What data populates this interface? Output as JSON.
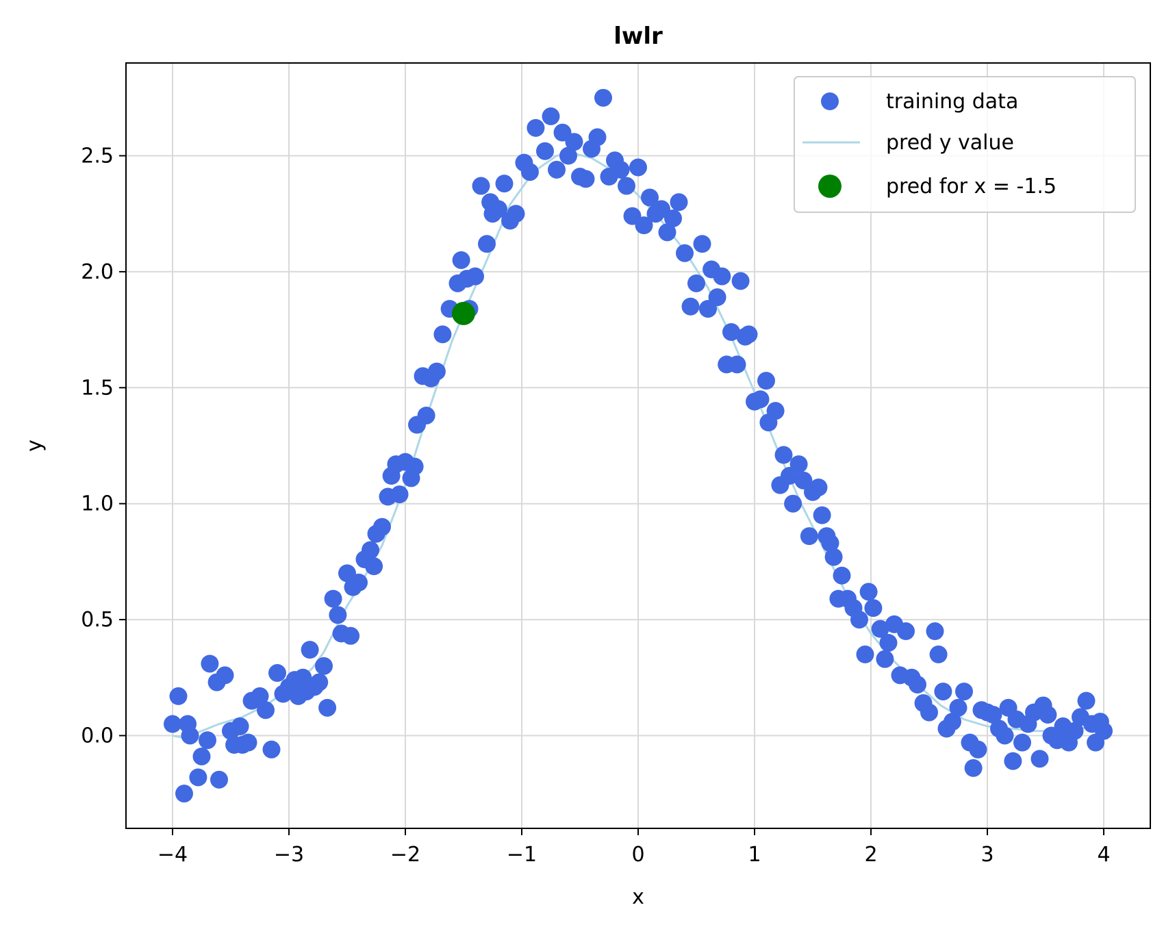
{
  "chart_data": {
    "type": "scatter",
    "title": "lwlr",
    "xlabel": "x",
    "ylabel": "y",
    "xlim": [
      -4.4,
      4.4
    ],
    "ylim": [
      -0.4,
      2.9
    ],
    "grid": true,
    "legend_placement": "upper-right",
    "x_ticks": [
      -4,
      -3,
      -2,
      -1,
      0,
      1,
      2,
      3,
      4
    ],
    "x_tick_labels": [
      "−4",
      "−3",
      "−2",
      "−1",
      "0",
      "1",
      "2",
      "3",
      "4"
    ],
    "y_ticks": [
      0.0,
      0.5,
      1.0,
      1.5,
      2.0,
      2.5
    ],
    "y_tick_labels": [
      "0.0",
      "0.5",
      "1.0",
      "1.5",
      "2.0",
      "2.5"
    ],
    "colors": {
      "training": "#4169e1",
      "pred_line": "#add8e6",
      "pred_point": "#008000",
      "grid": "#d9d9d9"
    },
    "series": [
      {
        "name": "training data",
        "kind": "scatter",
        "points": [
          [
            -4.0,
            0.05
          ],
          [
            -3.95,
            0.17
          ],
          [
            -3.9,
            -0.25
          ],
          [
            -3.87,
            0.05
          ],
          [
            -3.85,
            0.0
          ],
          [
            -3.78,
            -0.18
          ],
          [
            -3.75,
            -0.09
          ],
          [
            -3.7,
            -0.02
          ],
          [
            -3.68,
            0.31
          ],
          [
            -3.62,
            0.23
          ],
          [
            -3.6,
            -0.19
          ],
          [
            -3.55,
            0.26
          ],
          [
            -3.5,
            0.02
          ],
          [
            -3.47,
            -0.04
          ],
          [
            -3.42,
            0.04
          ],
          [
            -3.4,
            -0.04
          ],
          [
            -3.35,
            -0.03
          ],
          [
            -3.32,
            0.15
          ],
          [
            -3.25,
            0.17
          ],
          [
            -3.2,
            0.11
          ],
          [
            -3.15,
            -0.06
          ],
          [
            -3.1,
            0.27
          ],
          [
            -3.05,
            0.18
          ],
          [
            -3.0,
            0.21
          ],
          [
            -2.95,
            0.24
          ],
          [
            -2.92,
            0.17
          ],
          [
            -2.88,
            0.25
          ],
          [
            -2.85,
            0.19
          ],
          [
            -2.82,
            0.37
          ],
          [
            -2.78,
            0.21
          ],
          [
            -2.74,
            0.23
          ],
          [
            -2.7,
            0.3
          ],
          [
            -2.67,
            0.12
          ],
          [
            -2.62,
            0.59
          ],
          [
            -2.58,
            0.52
          ],
          [
            -2.55,
            0.44
          ],
          [
            -2.5,
            0.7
          ],
          [
            -2.47,
            0.43
          ],
          [
            -2.45,
            0.64
          ],
          [
            -2.4,
            0.66
          ],
          [
            -2.35,
            0.76
          ],
          [
            -2.3,
            0.8
          ],
          [
            -2.27,
            0.73
          ],
          [
            -2.25,
            0.87
          ],
          [
            -2.2,
            0.9
          ],
          [
            -2.15,
            1.03
          ],
          [
            -2.12,
            1.12
          ],
          [
            -2.08,
            1.17
          ],
          [
            -2.05,
            1.04
          ],
          [
            -2.0,
            1.18
          ],
          [
            -1.95,
            1.11
          ],
          [
            -1.92,
            1.16
          ],
          [
            -1.9,
            1.34
          ],
          [
            -1.85,
            1.55
          ],
          [
            -1.82,
            1.38
          ],
          [
            -1.78,
            1.54
          ],
          [
            -1.73,
            1.57
          ],
          [
            -1.68,
            1.73
          ],
          [
            -1.62,
            1.84
          ],
          [
            -1.55,
            1.95
          ],
          [
            -1.52,
            2.05
          ],
          [
            -1.47,
            1.97
          ],
          [
            -1.45,
            1.84
          ],
          [
            -1.4,
            1.98
          ],
          [
            -1.35,
            2.37
          ],
          [
            -1.3,
            2.12
          ],
          [
            -1.27,
            2.3
          ],
          [
            -1.25,
            2.25
          ],
          [
            -1.2,
            2.27
          ],
          [
            -1.15,
            2.38
          ],
          [
            -1.1,
            2.22
          ],
          [
            -1.05,
            2.25
          ],
          [
            -0.98,
            2.47
          ],
          [
            -0.93,
            2.43
          ],
          [
            -0.88,
            2.62
          ],
          [
            -0.8,
            2.52
          ],
          [
            -0.75,
            2.67
          ],
          [
            -0.7,
            2.44
          ],
          [
            -0.65,
            2.6
          ],
          [
            -0.6,
            2.5
          ],
          [
            -0.55,
            2.56
          ],
          [
            -0.5,
            2.41
          ],
          [
            -0.45,
            2.4
          ],
          [
            -0.4,
            2.53
          ],
          [
            -0.35,
            2.58
          ],
          [
            -0.3,
            2.75
          ],
          [
            -0.25,
            2.41
          ],
          [
            -0.2,
            2.48
          ],
          [
            -0.15,
            2.44
          ],
          [
            -0.1,
            2.37
          ],
          [
            -0.05,
            2.24
          ],
          [
            0.0,
            2.45
          ],
          [
            0.05,
            2.2
          ],
          [
            0.1,
            2.32
          ],
          [
            0.15,
            2.25
          ],
          [
            0.2,
            2.27
          ],
          [
            0.25,
            2.17
          ],
          [
            0.3,
            2.23
          ],
          [
            0.35,
            2.3
          ],
          [
            0.4,
            2.08
          ],
          [
            0.45,
            1.85
          ],
          [
            0.5,
            1.95
          ],
          [
            0.55,
            2.12
          ],
          [
            0.6,
            1.84
          ],
          [
            0.63,
            2.01
          ],
          [
            0.68,
            1.89
          ],
          [
            0.72,
            1.98
          ],
          [
            0.76,
            1.6
          ],
          [
            0.8,
            1.74
          ],
          [
            0.85,
            1.6
          ],
          [
            0.88,
            1.96
          ],
          [
            0.92,
            1.72
          ],
          [
            0.95,
            1.73
          ],
          [
            1.0,
            1.44
          ],
          [
            1.05,
            1.45
          ],
          [
            1.1,
            1.53
          ],
          [
            1.12,
            1.35
          ],
          [
            1.18,
            1.4
          ],
          [
            1.22,
            1.08
          ],
          [
            1.25,
            1.21
          ],
          [
            1.3,
            1.12
          ],
          [
            1.33,
            1.0
          ],
          [
            1.38,
            1.17
          ],
          [
            1.42,
            1.1
          ],
          [
            1.47,
            0.86
          ],
          [
            1.5,
            1.05
          ],
          [
            1.55,
            1.07
          ],
          [
            1.58,
            0.95
          ],
          [
            1.62,
            0.86
          ],
          [
            1.65,
            0.83
          ],
          [
            1.68,
            0.77
          ],
          [
            1.72,
            0.59
          ],
          [
            1.75,
            0.69
          ],
          [
            1.8,
            0.59
          ],
          [
            1.85,
            0.55
          ],
          [
            1.9,
            0.5
          ],
          [
            1.95,
            0.35
          ],
          [
            1.98,
            0.62
          ],
          [
            2.02,
            0.55
          ],
          [
            2.08,
            0.46
          ],
          [
            2.12,
            0.33
          ],
          [
            2.15,
            0.4
          ],
          [
            2.2,
            0.48
          ],
          [
            2.25,
            0.26
          ],
          [
            2.3,
            0.45
          ],
          [
            2.35,
            0.25
          ],
          [
            2.4,
            0.22
          ],
          [
            2.45,
            0.14
          ],
          [
            2.5,
            0.1
          ],
          [
            2.55,
            0.45
          ],
          [
            2.58,
            0.35
          ],
          [
            2.62,
            0.19
          ],
          [
            2.65,
            0.03
          ],
          [
            2.7,
            0.06
          ],
          [
            2.75,
            0.12
          ],
          [
            2.8,
            0.19
          ],
          [
            2.85,
            -0.03
          ],
          [
            2.88,
            -0.14
          ],
          [
            2.92,
            -0.06
          ],
          [
            2.95,
            0.11
          ],
          [
            3.0,
            0.1
          ],
          [
            3.05,
            0.09
          ],
          [
            3.1,
            0.03
          ],
          [
            3.15,
            0.0
          ],
          [
            3.18,
            0.12
          ],
          [
            3.22,
            -0.11
          ],
          [
            3.25,
            0.07
          ],
          [
            3.3,
            -0.03
          ],
          [
            3.35,
            0.05
          ],
          [
            3.4,
            0.1
          ],
          [
            3.45,
            -0.1
          ],
          [
            3.48,
            0.13
          ],
          [
            3.52,
            0.09
          ],
          [
            3.55,
            0.0
          ],
          [
            3.6,
            -0.02
          ],
          [
            3.65,
            0.04
          ],
          [
            3.7,
            -0.03
          ],
          [
            3.75,
            0.02
          ],
          [
            3.8,
            0.08
          ],
          [
            3.85,
            0.15
          ],
          [
            3.9,
            0.05
          ],
          [
            3.93,
            -0.03
          ],
          [
            3.97,
            0.06
          ],
          [
            4.0,
            0.02
          ]
        ]
      },
      {
        "name": "pred y value",
        "kind": "line",
        "points": [
          [
            -4.0,
            0.0
          ],
          [
            -3.9,
            -0.01
          ],
          [
            -3.8,
            0.01
          ],
          [
            -3.6,
            0.05
          ],
          [
            -3.4,
            0.08
          ],
          [
            -3.2,
            0.13
          ],
          [
            -3.0,
            0.2
          ],
          [
            -2.8,
            0.29
          ],
          [
            -2.7,
            0.36
          ],
          [
            -2.6,
            0.46
          ],
          [
            -2.5,
            0.56
          ],
          [
            -2.4,
            0.64
          ],
          [
            -2.2,
            0.82
          ],
          [
            -2.0,
            1.08
          ],
          [
            -1.8,
            1.4
          ],
          [
            -1.6,
            1.7
          ],
          [
            -1.5,
            1.82
          ],
          [
            -1.3,
            2.05
          ],
          [
            -1.1,
            2.29
          ],
          [
            -0.9,
            2.43
          ],
          [
            -0.7,
            2.5
          ],
          [
            -0.55,
            2.51
          ],
          [
            -0.4,
            2.49
          ],
          [
            -0.2,
            2.43
          ],
          [
            0.0,
            2.33
          ],
          [
            0.2,
            2.22
          ],
          [
            0.4,
            2.09
          ],
          [
            0.6,
            1.93
          ],
          [
            0.8,
            1.72
          ],
          [
            1.0,
            1.48
          ],
          [
            1.2,
            1.23
          ],
          [
            1.4,
            1.0
          ],
          [
            1.6,
            0.8
          ],
          [
            1.8,
            0.6
          ],
          [
            2.0,
            0.44
          ],
          [
            2.2,
            0.32
          ],
          [
            2.4,
            0.22
          ],
          [
            2.6,
            0.13
          ],
          [
            2.8,
            0.07
          ],
          [
            3.0,
            0.04
          ],
          [
            3.2,
            0.03
          ],
          [
            3.4,
            0.02
          ],
          [
            3.6,
            0.02
          ],
          [
            3.8,
            0.03
          ],
          [
            4.0,
            0.045
          ]
        ]
      },
      {
        "name": "pred for x = -1.5",
        "kind": "point",
        "points": [
          [
            -1.5,
            1.82
          ]
        ]
      }
    ]
  }
}
